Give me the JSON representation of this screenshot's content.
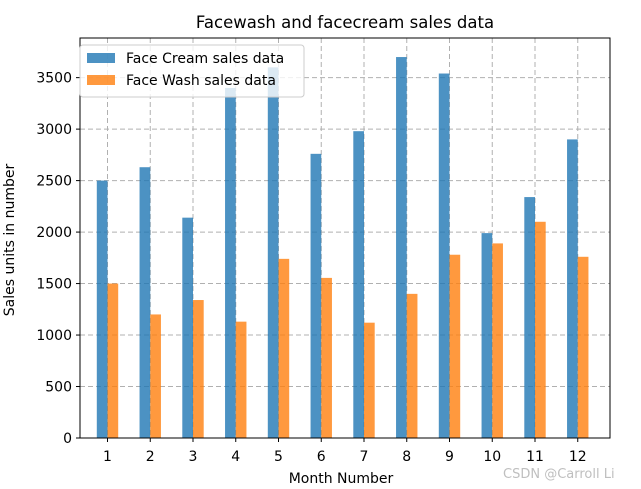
{
  "chart_data": {
    "type": "bar",
    "title": "Facewash and facecream sales data",
    "xlabel": "Month Number",
    "ylabel": "Sales units in number",
    "categories": [
      "1",
      "2",
      "3",
      "4",
      "5",
      "6",
      "7",
      "8",
      "9",
      "10",
      "11",
      "12"
    ],
    "series": [
      {
        "name": "Face Cream sales data",
        "color": "#1f77b4",
        "values": [
          2500,
          2630,
          2140,
          3400,
          3600,
          2760,
          2980,
          3700,
          3540,
          1990,
          2340,
          2900
        ]
      },
      {
        "name": "Face Wash sales data",
        "color": "#ff7f0e",
        "values": [
          1500,
          1200,
          1340,
          1130,
          1740,
          1555,
          1120,
          1400,
          1780,
          1890,
          2100,
          1760
        ]
      }
    ],
    "yticks": [
      0,
      500,
      1000,
      1500,
      2000,
      2500,
      3000,
      3500
    ],
    "ylim": [
      0,
      3885
    ],
    "grid": true,
    "legend_position": "upper left",
    "bar_alpha": 0.8
  },
  "watermark": "CSDN @Carroll Li"
}
